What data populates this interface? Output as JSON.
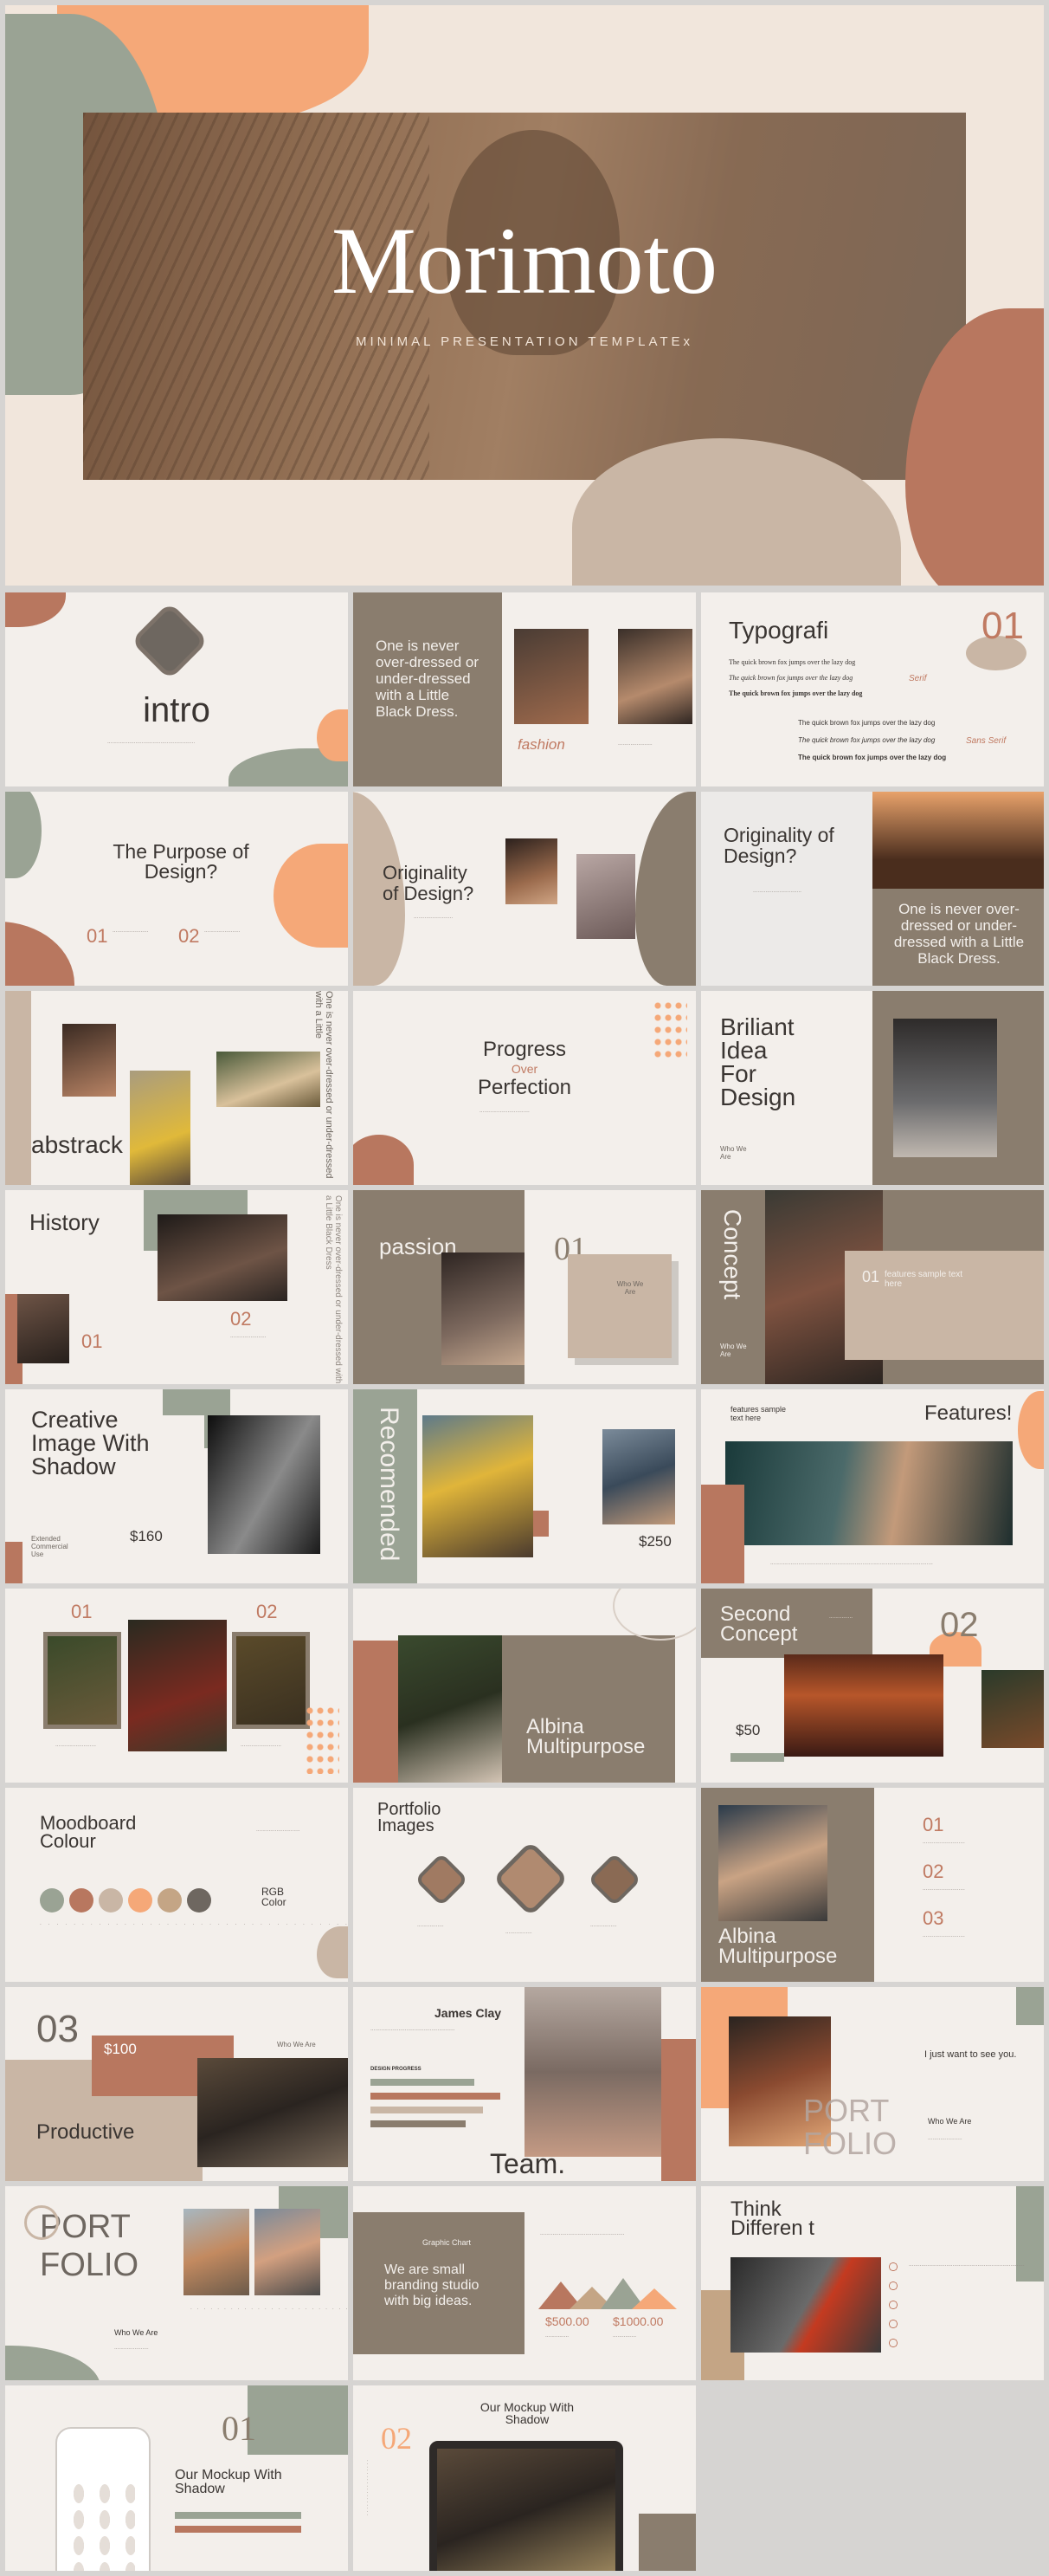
{
  "palette": {
    "sage": "#9aa394",
    "terracotta": "#b8775f",
    "taupe": "#8a7d6e",
    "sand": "#c9b6a5",
    "peach": "#f5a878",
    "tan": "#c4a585",
    "dark": "#6e6760",
    "cream": "#f3efeb"
  },
  "hero": {
    "title": "Morimoto",
    "subtitle": "MINIMAL PRESENTATION TEMPLATEx"
  },
  "s_intro": {
    "title": "intro"
  },
  "s_never": {
    "quote": "One is never over-dressed or under-dressed with a Little Black Dress.",
    "tag": "fashion"
  },
  "s_typo": {
    "title": "Typografi",
    "num": "01",
    "serif": "Serif",
    "sans": "Sans Serif",
    "line": "The quick brown fox jumps over the lazy dog"
  },
  "s_purpose": {
    "title": "The Purpose of Design?",
    "n1": "01",
    "n2": "02"
  },
  "s_orig1": {
    "title": "Originality of Design?"
  },
  "s_orig2": {
    "title": "Originality of Design?",
    "quote": "One is never over-dressed or under-dressed with a Little Black Dress."
  },
  "s_abstrack": {
    "title": "abstrack",
    "vert": "One is never over-dressed or under-dressed with a Little"
  },
  "s_progress": {
    "l1": "Progress",
    "l2": "Over",
    "l3": "Perfection"
  },
  "s_briliant": {
    "title": "Briliant Idea For Design",
    "who": "Who We Are"
  },
  "s_history": {
    "title": "History",
    "n1": "01",
    "n2": "02",
    "vert": "One is never over-dressed or under-dressed with a Little Black Dress"
  },
  "s_passion": {
    "title": "passion",
    "num": "01",
    "who": "Who We Are"
  },
  "s_concept": {
    "title": "Concept",
    "num": "01",
    "sample": "features sample text here",
    "who": "Who We Are"
  },
  "s_creative": {
    "title": "Creative Image With Shadow",
    "price": "$160",
    "sub": "Extended Commercial Use"
  },
  "s_recomended": {
    "vert": "Recomended",
    "price": "$250"
  },
  "s_features": {
    "title": "Features!",
    "sample": "features sample text here"
  },
  "s_trio": {
    "n1": "01",
    "n2": "02"
  },
  "s_albina1": {
    "title": "Albina Multipurpose"
  },
  "s_second": {
    "title": "Second Concept",
    "num": "02",
    "price": "$50"
  },
  "s_moodboard": {
    "title": "Moodboard Colour",
    "rgb": "RGB Color"
  },
  "s_portfolio_img": {
    "title": "Portfolio Images"
  },
  "s_albina2": {
    "title": "Albina Multipurpose",
    "n1": "01",
    "n2": "02",
    "n3": "03"
  },
  "s_productive": {
    "num": "03",
    "price": "$100",
    "who": "Who We Are",
    "title": "Productive"
  },
  "s_team": {
    "name": "James Clay",
    "label": "DESIGN PROGRESS",
    "title": "Team."
  },
  "s_portfolio1": {
    "tagline": "I just want to see you.",
    "l1": "PORT",
    "l2": "FOLIO",
    "who": "Who We Are"
  },
  "s_portfolio2": {
    "l1": "PORT",
    "l2": "FOLIO",
    "who": "Who We Are"
  },
  "s_graphic": {
    "label": "Graphic Chart",
    "quote": "We are small branding studio with big ideas.",
    "v1": "$500.00",
    "v2": "$1000.00"
  },
  "s_think": {
    "title": "Think Differen t"
  },
  "s_mockup1": {
    "num": "01",
    "title": "Our Mockup With Shadow"
  },
  "s_mockup2": {
    "num": "02",
    "title": "Our Mockup With Shadow"
  }
}
